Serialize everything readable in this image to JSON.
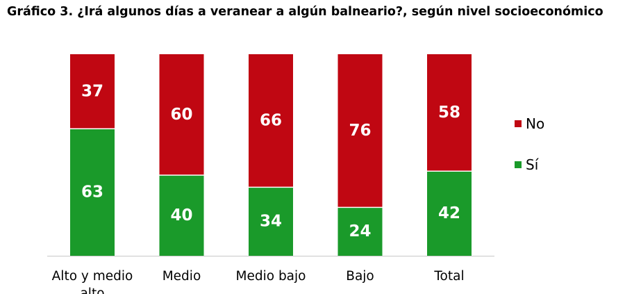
{
  "title": "Gráfico 3. ¿Irá algunos días a veranear a algún balneario?, según nivel socioeconómico",
  "chart_data": {
    "type": "bar",
    "stacked": true,
    "percent_scale": true,
    "categories": [
      "Alto y medio alto",
      "Medio",
      "Medio bajo",
      "Bajo",
      "Total"
    ],
    "series": [
      {
        "name": "Sí",
        "values": [
          63,
          40,
          34,
          24,
          42
        ],
        "color": "#1a9a2a"
      },
      {
        "name": "No",
        "values": [
          37,
          60,
          66,
          76,
          58
        ],
        "color": "#c00712"
      }
    ],
    "ylim": [
      0,
      100
    ],
    "grid": false,
    "legend_position": "right",
    "legend_order": [
      "No",
      "Sí"
    ],
    "data_labels": true
  }
}
